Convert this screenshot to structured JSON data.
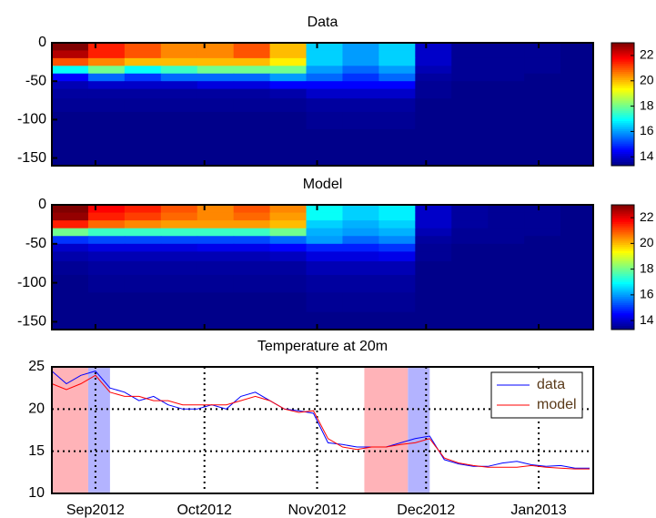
{
  "chart_data": [
    {
      "type": "heatmap",
      "title": "Data",
      "x": [
        -7,
        3,
        13,
        23,
        33,
        43,
        53,
        63,
        73,
        83,
        93,
        103,
        113,
        123,
        133
      ],
      "y": [
        -5,
        -15,
        -25,
        -35,
        -45,
        -55,
        -65,
        -80,
        -100,
        -125,
        -150
      ],
      "values": [
        [
          23,
          21.5,
          21,
          20.5,
          20.5,
          21,
          20,
          16.5,
          16,
          16.5,
          14,
          13.5,
          13.5,
          13.5,
          13.4
        ],
        [
          22.5,
          21.5,
          21,
          20.5,
          20.5,
          21,
          20,
          16.5,
          16,
          16.5,
          14,
          13.5,
          13.5,
          13.5,
          13.4
        ],
        [
          21,
          20.5,
          20,
          20,
          20,
          20,
          19.5,
          16.5,
          16,
          16.5,
          14,
          13.5,
          13.5,
          13.5,
          13.4
        ],
        [
          17,
          18,
          17,
          17.5,
          18,
          18,
          18,
          16,
          15.5,
          16,
          13.8,
          13.5,
          13.5,
          13.5,
          13.4
        ],
        [
          14.5,
          15.5,
          15,
          15.5,
          15.5,
          15.5,
          16,
          15.5,
          15,
          15.5,
          13.6,
          13.5,
          13.5,
          13.4,
          13.4
        ],
        [
          13.8,
          14,
          14,
          14,
          14.2,
          14.2,
          14.5,
          14.5,
          14.5,
          14.5,
          13.5,
          13.4,
          13.4,
          13.4,
          13.4
        ],
        [
          13.6,
          13.6,
          13.6,
          13.6,
          13.6,
          13.6,
          13.7,
          14,
          14,
          14,
          13.5,
          13.4,
          13.4,
          13.4,
          13.4
        ],
        [
          13.5,
          13.5,
          13.5,
          13.5,
          13.5,
          13.5,
          13.5,
          13.6,
          13.6,
          13.6,
          13.4,
          13.4,
          13.4,
          13.4,
          13.4
        ],
        [
          13.4,
          13.4,
          13.4,
          13.4,
          13.4,
          13.4,
          13.4,
          13.5,
          13.5,
          13.5,
          13.4,
          13.4,
          13.4,
          13.4,
          13.4
        ],
        [
          13.4,
          13.4,
          13.4,
          13.4,
          13.4,
          13.4,
          13.4,
          13.4,
          13.4,
          13.4,
          13.4,
          13.4,
          13.4,
          13.4,
          13.4
        ],
        [
          13.4,
          13.4,
          13.4,
          13.4,
          13.4,
          13.4,
          13.4,
          13.4,
          13.4,
          13.4,
          13.4,
          13.4,
          13.4,
          13.4,
          13.4
        ]
      ],
      "xlim": [
        -12,
        137
      ],
      "ylim": [
        -160,
        0
      ],
      "yticks": [
        0,
        -50,
        -100,
        -150
      ],
      "clim": [
        13.3,
        23
      ],
      "cticks": [
        14,
        16,
        18,
        20,
        22
      ],
      "colormap": "jet"
    },
    {
      "type": "heatmap",
      "title": "Model",
      "x": [
        -7,
        3,
        13,
        23,
        33,
        43,
        53,
        63,
        73,
        83,
        93,
        103,
        113,
        123,
        133
      ],
      "y": [
        -5,
        -15,
        -25,
        -35,
        -45,
        -55,
        -65,
        -80,
        -100,
        -125,
        -150
      ],
      "values": [
        [
          23,
          21.8,
          21.5,
          21,
          20.5,
          21,
          20.5,
          17,
          16.5,
          16.8,
          14,
          13.6,
          13.5,
          13.5,
          13.4
        ],
        [
          22.8,
          21.5,
          21.2,
          20.8,
          20.5,
          20.8,
          20.3,
          17,
          16.5,
          16.8,
          14,
          13.6,
          13.5,
          13.5,
          13.4
        ],
        [
          21.5,
          20.8,
          20.5,
          20.3,
          20.3,
          20.3,
          20,
          16.5,
          16.2,
          16.5,
          14,
          13.6,
          13.5,
          13.5,
          13.4
        ],
        [
          18,
          17.5,
          17.5,
          17.5,
          17.5,
          17.5,
          18,
          16.2,
          16,
          16.2,
          13.8,
          13.5,
          13.5,
          13.5,
          13.4
        ],
        [
          15,
          15.2,
          15.2,
          15.2,
          15.2,
          15.2,
          15.5,
          16,
          15.5,
          15.8,
          13.6,
          13.5,
          13.5,
          13.4,
          13.4
        ],
        [
          14,
          14.2,
          14.2,
          14.2,
          14.3,
          14.3,
          14.5,
          14.8,
          14.8,
          15,
          13.5,
          13.4,
          13.4,
          13.4,
          13.4
        ],
        [
          13.7,
          13.8,
          13.8,
          13.8,
          13.8,
          13.8,
          13.9,
          14.2,
          14.2,
          14.3,
          13.5,
          13.4,
          13.4,
          13.4,
          13.4
        ],
        [
          13.5,
          13.6,
          13.6,
          13.6,
          13.6,
          13.6,
          13.6,
          13.8,
          13.8,
          13.8,
          13.4,
          13.4,
          13.4,
          13.4,
          13.4
        ],
        [
          13.4,
          13.5,
          13.5,
          13.5,
          13.5,
          13.5,
          13.5,
          13.6,
          13.6,
          13.6,
          13.4,
          13.4,
          13.4,
          13.4,
          13.4
        ],
        [
          13.4,
          13.4,
          13.4,
          13.4,
          13.4,
          13.4,
          13.4,
          13.5,
          13.5,
          13.5,
          13.4,
          13.4,
          13.4,
          13.4,
          13.4
        ],
        [
          13.4,
          13.4,
          13.4,
          13.4,
          13.4,
          13.4,
          13.4,
          13.4,
          13.4,
          13.4,
          13.4,
          13.4,
          13.4,
          13.4,
          13.4
        ]
      ],
      "xlim": [
        -12,
        137
      ],
      "ylim": [
        -160,
        0
      ],
      "yticks": [
        0,
        -50,
        -100,
        -150
      ],
      "clim": [
        13.3,
        23
      ],
      "cticks": [
        14,
        16,
        18,
        20,
        22
      ],
      "colormap": "jet"
    },
    {
      "type": "line",
      "title": "Temperature at 20m",
      "x": [
        -12,
        -8,
        -4,
        0,
        4,
        8,
        12,
        16,
        20,
        24,
        28,
        32,
        36,
        40,
        44,
        48,
        52,
        56,
        60,
        64,
        68,
        72,
        76,
        80,
        84,
        88,
        92,
        96,
        100,
        104,
        108,
        112,
        116,
        120,
        124,
        128,
        132,
        136
      ],
      "series": [
        {
          "name": "data",
          "color": "#0000ff",
          "values": [
            24.5,
            23,
            24,
            24.5,
            22.5,
            22,
            21,
            21.5,
            20.5,
            20,
            20,
            20.5,
            20,
            21.5,
            22,
            21,
            20,
            19.8,
            19.5,
            16,
            15.8,
            15.5,
            15.5,
            15.5,
            16,
            16.5,
            16.8,
            14,
            13.5,
            13.2,
            13.2,
            13.6,
            13.8,
            13.4,
            13.2,
            13.3,
            13,
            13
          ]
        },
        {
          "name": "model",
          "color": "#ff0000",
          "values": [
            23,
            22.3,
            23,
            24,
            22,
            21.5,
            21.5,
            21,
            21,
            20.5,
            20.5,
            20.5,
            20.5,
            21,
            21.5,
            21,
            20,
            19.6,
            19.8,
            16.5,
            15.5,
            15.2,
            15.5,
            15.5,
            15.8,
            16,
            16.5,
            14.2,
            13.6,
            13.3,
            13.1,
            13.1,
            13.1,
            13.3,
            13.1,
            13,
            12.9,
            12.9
          ]
        }
      ],
      "spans": [
        {
          "x": [
            -12,
            -2
          ],
          "color": "#ffb3b8"
        },
        {
          "x": [
            -2,
            4
          ],
          "color": "#b3b3ff"
        },
        {
          "x": [
            74,
            86
          ],
          "color": "#ffb3b8"
        },
        {
          "x": [
            86,
            92
          ],
          "color": "#b3b3ff"
        }
      ],
      "xlim": [
        -12,
        137
      ],
      "ylim": [
        10,
        25
      ],
      "xticks": [
        {
          "value": 0,
          "label": "Sep2012"
        },
        {
          "value": 30,
          "label": "Oct2012"
        },
        {
          "value": 61,
          "label": "Nov2012"
        },
        {
          "value": 91,
          "label": "Dec2012"
        },
        {
          "value": 122,
          "label": "Jan2013"
        }
      ],
      "yticks": [
        10,
        15,
        20,
        25
      ],
      "grid": true,
      "legend": "upper right"
    }
  ]
}
